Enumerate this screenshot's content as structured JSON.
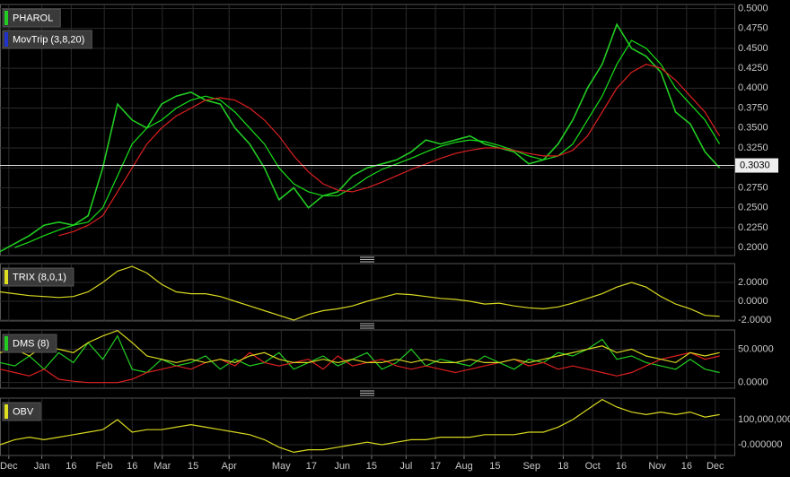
{
  "chart_data": [
    {
      "type": "line",
      "legend_items": [
        {
          "name": "PHAROL",
          "color": "#22cc22"
        },
        {
          "name": "MovTrip (3,8,20)",
          "color": "#2233cc"
        }
      ],
      "xlim": [
        0,
        100
      ],
      "x": [
        0,
        2,
        4,
        6,
        8,
        10,
        12,
        14,
        16,
        18,
        20,
        22,
        24,
        26,
        28,
        30,
        32,
        34,
        36,
        38,
        40,
        42,
        44,
        46,
        48,
        50,
        52,
        54,
        56,
        58,
        60,
        62,
        64,
        66,
        68,
        70,
        72,
        74,
        76,
        78,
        80,
        82,
        84,
        86,
        88,
        90,
        92,
        94,
        96,
        98
      ],
      "ylim": [
        0.19,
        0.505
      ],
      "yticks": [
        {
          "value": 0.2,
          "label": "0.2000"
        },
        {
          "value": 0.225,
          "label": "0.2250"
        },
        {
          "value": 0.25,
          "label": "0.2500"
        },
        {
          "value": 0.275,
          "label": "0.2750"
        },
        {
          "value": 0.3,
          "label": "0.3000"
        },
        {
          "value": 0.325,
          "label": "0.3250"
        },
        {
          "value": 0.35,
          "label": "0.3500"
        },
        {
          "value": 0.375,
          "label": "0.3750"
        },
        {
          "value": 0.4,
          "label": "0.4000"
        },
        {
          "value": 0.425,
          "label": "0.4250"
        },
        {
          "value": 0.45,
          "label": "0.4500"
        },
        {
          "value": 0.475,
          "label": "0.4750"
        },
        {
          "value": 0.5,
          "label": "0.5000"
        }
      ],
      "last_value": {
        "value": 0.303,
        "label": "0.3030"
      },
      "series": [
        {
          "color": "#22cc22",
          "values": [
            0.195,
            0.205,
            0.215,
            0.228,
            0.232,
            0.228,
            0.24,
            0.3,
            0.38,
            0.36,
            0.35,
            0.38,
            0.39,
            0.395,
            0.385,
            0.38,
            0.35,
            0.33,
            0.3,
            0.26,
            0.275,
            0.25,
            0.265,
            0.27,
            0.29,
            0.3,
            0.305,
            0.31,
            0.32,
            0.335,
            0.33,
            0.335,
            0.34,
            0.33,
            0.325,
            0.32,
            0.305,
            0.31,
            0.33,
            0.36,
            0.4,
            0.43,
            0.48,
            0.45,
            0.44,
            0.42,
            0.37,
            0.355,
            0.32,
            0.3
          ]
        },
        {
          "color": "#18e018",
          "values": [
            null,
            0.2,
            0.207,
            0.215,
            0.222,
            0.228,
            0.232,
            0.25,
            0.29,
            0.33,
            0.35,
            0.36,
            0.375,
            0.385,
            0.39,
            0.385,
            0.37,
            0.35,
            0.33,
            0.3,
            0.28,
            0.27,
            0.265,
            0.265,
            0.275,
            0.288,
            0.298,
            0.305,
            0.312,
            0.32,
            0.327,
            0.332,
            0.335,
            0.333,
            0.328,
            0.322,
            0.315,
            0.31,
            0.315,
            0.33,
            0.36,
            0.39,
            0.43,
            0.46,
            0.45,
            0.43,
            0.4,
            0.38,
            0.36,
            0.33
          ]
        },
        {
          "color": "#dd2020",
          "values": [
            null,
            null,
            null,
            null,
            0.215,
            0.22,
            0.228,
            0.24,
            0.27,
            0.3,
            0.33,
            0.35,
            0.365,
            0.375,
            0.385,
            0.388,
            0.385,
            0.375,
            0.36,
            0.34,
            0.315,
            0.295,
            0.28,
            0.272,
            0.27,
            0.275,
            0.282,
            0.29,
            0.298,
            0.305,
            0.312,
            0.318,
            0.322,
            0.325,
            0.325,
            0.322,
            0.318,
            0.315,
            0.315,
            0.322,
            0.34,
            0.37,
            0.4,
            0.42,
            0.43,
            0.425,
            0.41,
            0.39,
            0.37,
            0.34
          ]
        }
      ]
    },
    {
      "type": "line",
      "legend_items": [
        {
          "name": "TRIX (8,0,1)",
          "color": "#e0e020"
        }
      ],
      "xlim": [
        0,
        100
      ],
      "x": [
        0,
        2,
        4,
        6,
        8,
        10,
        12,
        14,
        16,
        18,
        20,
        22,
        24,
        26,
        28,
        30,
        32,
        34,
        36,
        38,
        40,
        42,
        44,
        46,
        48,
        50,
        52,
        54,
        56,
        58,
        60,
        62,
        64,
        66,
        68,
        70,
        72,
        74,
        76,
        78,
        80,
        82,
        84,
        86,
        88,
        90,
        92,
        94,
        96,
        98
      ],
      "ylim": [
        -2.1,
        4.0
      ],
      "yticks": [
        {
          "value": 2,
          "label": "2.0000"
        },
        {
          "value": 0,
          "label": "0.0000"
        },
        {
          "value": -2,
          "label": "-2.0000"
        }
      ],
      "series": [
        {
          "color": "#d8d820",
          "values": [
            1.0,
            0.8,
            0.6,
            0.5,
            0.4,
            0.5,
            1.0,
            2.0,
            3.2,
            3.7,
            3.0,
            1.8,
            1.0,
            0.8,
            0.8,
            0.5,
            0.0,
            -0.5,
            -1.0,
            -1.5,
            -2.0,
            -1.4,
            -1.0,
            -0.8,
            -0.5,
            0.0,
            0.4,
            0.8,
            0.7,
            0.5,
            0.3,
            0.2,
            0.0,
            -0.3,
            -0.2,
            -0.5,
            -0.7,
            -0.8,
            -0.6,
            -0.2,
            0.3,
            0.8,
            1.5,
            2.0,
            1.5,
            0.5,
            -0.3,
            -0.8,
            -1.5,
            -1.6
          ]
        }
      ]
    },
    {
      "type": "line",
      "legend_items": [
        {
          "name": "DMS (8)",
          "color": "#22cc22"
        }
      ],
      "xlim": [
        0,
        100
      ],
      "x": [
        0,
        2,
        4,
        6,
        8,
        10,
        12,
        14,
        16,
        18,
        20,
        22,
        24,
        26,
        28,
        30,
        32,
        34,
        36,
        38,
        40,
        42,
        44,
        46,
        48,
        50,
        52,
        54,
        56,
        58,
        60,
        62,
        64,
        66,
        68,
        70,
        72,
        74,
        76,
        78,
        80,
        82,
        84,
        86,
        88,
        90,
        92,
        94,
        96,
        98
      ],
      "ylim": [
        -8.5,
        79
      ],
      "yticks": [
        {
          "value": 50,
          "label": "50.0000"
        },
        {
          "value": 0,
          "label": "0.0000"
        }
      ],
      "series": [
        {
          "color": "#22cc22",
          "values": [
            30,
            25,
            40,
            20,
            45,
            30,
            60,
            35,
            70,
            20,
            15,
            35,
            25,
            30,
            40,
            20,
            35,
            25,
            30,
            45,
            20,
            30,
            40,
            25,
            35,
            45,
            20,
            30,
            50,
            25,
            35,
            30,
            25,
            40,
            30,
            20,
            35,
            30,
            45,
            40,
            50,
            65,
            35,
            40,
            30,
            25,
            20,
            35,
            20,
            15
          ]
        },
        {
          "color": "#dd2020",
          "values": [
            20,
            15,
            10,
            20,
            5,
            2,
            0,
            0,
            0,
            5,
            15,
            20,
            25,
            20,
            30,
            35,
            25,
            45,
            30,
            25,
            30,
            35,
            20,
            40,
            25,
            30,
            35,
            25,
            20,
            25,
            20,
            15,
            20,
            25,
            30,
            35,
            25,
            30,
            20,
            25,
            20,
            15,
            10,
            15,
            25,
            35,
            40,
            45,
            35,
            40
          ]
        },
        {
          "color": "#d8d820",
          "values": [
            45,
            50,
            40,
            55,
            50,
            45,
            60,
            70,
            78,
            60,
            40,
            35,
            30,
            35,
            30,
            35,
            30,
            40,
            45,
            35,
            30,
            30,
            35,
            30,
            35,
            30,
            30,
            35,
            30,
            35,
            30,
            30,
            35,
            30,
            30,
            35,
            30,
            35,
            40,
            45,
            50,
            55,
            45,
            50,
            40,
            35,
            30,
            45,
            40,
            45
          ]
        }
      ]
    },
    {
      "type": "line",
      "legend_items": [
        {
          "name": "OBV",
          "color": "#e0e020"
        }
      ],
      "xlim": [
        0,
        100
      ],
      "x": [
        0,
        2,
        4,
        6,
        8,
        10,
        12,
        14,
        16,
        18,
        20,
        22,
        24,
        26,
        28,
        30,
        32,
        34,
        36,
        38,
        40,
        42,
        44,
        46,
        48,
        50,
        52,
        54,
        56,
        58,
        60,
        62,
        64,
        66,
        68,
        70,
        72,
        74,
        76,
        78,
        80,
        82,
        84,
        86,
        88,
        90,
        92,
        94,
        96,
        98
      ],
      "ylim": [
        -43000000,
        185700000
      ],
      "yticks": [
        {
          "value": 100000000,
          "label": "100,000,000"
        },
        {
          "value": 0,
          "label": "-0.000000"
        }
      ],
      "xticks": [
        {
          "value": 1.2,
          "label": "Dec"
        },
        {
          "value": 5.7,
          "label": "Jan"
        },
        {
          "value": 9.7,
          "label": "16"
        },
        {
          "value": 14.2,
          "label": "Feb"
        },
        {
          "value": 18,
          "label": "16"
        },
        {
          "value": 22.1,
          "label": "Mar"
        },
        {
          "value": 26.3,
          "label": "15"
        },
        {
          "value": 31.2,
          "label": "Apr"
        },
        {
          "value": 38.3,
          "label": "May"
        },
        {
          "value": 42.4,
          "label": "17"
        },
        {
          "value": 46.6,
          "label": "Jun"
        },
        {
          "value": 50.6,
          "label": "15"
        },
        {
          "value": 55.3,
          "label": "Jul"
        },
        {
          "value": 59.3,
          "label": "17"
        },
        {
          "value": 63.2,
          "label": "Aug"
        },
        {
          "value": 67.4,
          "label": "15"
        },
        {
          "value": 72.4,
          "label": "Sep"
        },
        {
          "value": 76.7,
          "label": "18"
        },
        {
          "value": 80.7,
          "label": "Oct"
        },
        {
          "value": 84.6,
          "label": "16"
        },
        {
          "value": 89.5,
          "label": "Nov"
        },
        {
          "value": 93.5,
          "label": "16"
        },
        {
          "value": 97.4,
          "label": "Dec"
        }
      ],
      "series": [
        {
          "color": "#d8d820",
          "values": [
            0,
            20000000,
            30000000,
            20000000,
            30000000,
            40000000,
            50000000,
            60000000,
            100000000,
            50000000,
            60000000,
            60000000,
            70000000,
            80000000,
            70000000,
            60000000,
            50000000,
            40000000,
            20000000,
            -10000000,
            -30000000,
            -20000000,
            -20000000,
            -10000000,
            0,
            10000000,
            0,
            10000000,
            20000000,
            20000000,
            30000000,
            30000000,
            30000000,
            40000000,
            40000000,
            40000000,
            50000000,
            50000000,
            70000000,
            100000000,
            140000000,
            180000000,
            150000000,
            130000000,
            120000000,
            130000000,
            120000000,
            130000000,
            110000000,
            120000000
          ]
        }
      ]
    }
  ]
}
